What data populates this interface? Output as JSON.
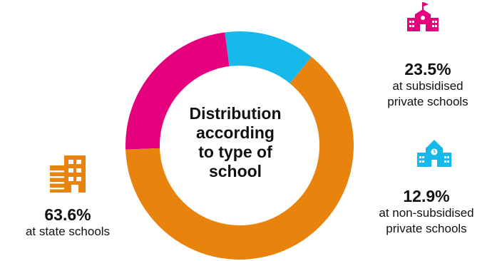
{
  "colors": {
    "state": "#e8830d",
    "subsidised": "#e5007e",
    "non_subsidised": "#17b9ea",
    "text": "#111111"
  },
  "chart_data": {
    "type": "pie",
    "title_lines": [
      "Distribution",
      "according",
      "to type of",
      "school"
    ],
    "slices": [
      {
        "name": "subsidised",
        "value": 23.5,
        "label": "23.5%",
        "label_lines": [
          "at subsidised",
          "private schools"
        ],
        "color": "#e5007e",
        "icon": "school-flag-icon"
      },
      {
        "name": "non_subsidised",
        "value": 12.9,
        "label": "12.9%",
        "label_lines": [
          "at non-subsidised",
          "private schools"
        ],
        "color": "#17b9ea",
        "icon": "school-clock-icon"
      },
      {
        "name": "state",
        "value": 63.6,
        "label": "63.6%",
        "label_lines": [
          "at state schools"
        ],
        "color": "#e8830d",
        "icon": "building-icon"
      }
    ]
  }
}
